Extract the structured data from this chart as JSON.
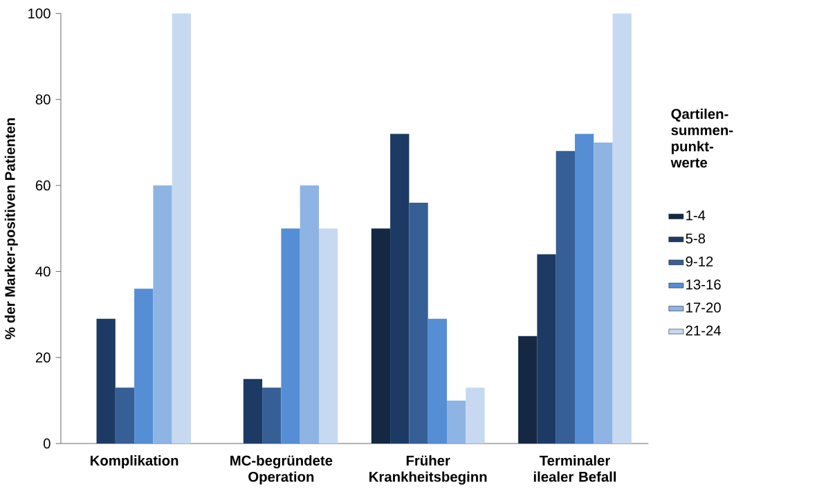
{
  "chart_data": {
    "type": "bar",
    "ylabel": "% der Marker-positiven Patienten",
    "legend_title": "Qartilen-summen-punkt-werte",
    "categories": [
      "Komplikation",
      "MC-begründete Operation",
      "Früher Krankheitsbeginn",
      "Terminaler ilealer Befall"
    ],
    "series": [
      {
        "name": "1-4",
        "color": "#142843",
        "values": [
          0,
          0,
          50,
          25
        ]
      },
      {
        "name": "5-8",
        "color": "#1c3a63",
        "values": [
          29,
          15,
          72,
          44
        ]
      },
      {
        "name": "9-12",
        "color": "#355f95",
        "values": [
          13,
          13,
          56,
          68
        ]
      },
      {
        "name": "13-16",
        "color": "#558ed5",
        "values": [
          36,
          50,
          29,
          72
        ]
      },
      {
        "name": "17-20",
        "color": "#8eb4e3",
        "values": [
          60,
          60,
          10,
          70
        ]
      },
      {
        "name": "21-24",
        "color": "#c6d9f1",
        "values": [
          100,
          50,
          13,
          100
        ]
      }
    ],
    "ylim": [
      0,
      100
    ],
    "yticks": [
      0,
      20,
      40,
      60,
      80,
      100
    ],
    "grid": false,
    "legend": "right"
  }
}
